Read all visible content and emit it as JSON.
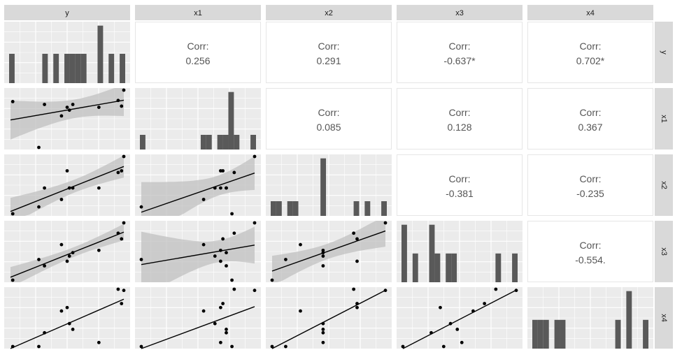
{
  "chart_data": {
    "type": "scatter",
    "variables": [
      "y",
      "x1",
      "x2",
      "x3",
      "x4"
    ],
    "corr_label": "Corr:",
    "correlations": [
      {
        "row": "x1",
        "col": "y",
        "value": "0.256"
      },
      {
        "row": "x2",
        "col": "y",
        "value": "0.291"
      },
      {
        "row": "x3",
        "col": "y",
        "value": "-0.637*"
      },
      {
        "row": "x4",
        "col": "y",
        "value": "0.702*"
      },
      {
        "row": "x2",
        "col": "x1",
        "value": "0.085"
      },
      {
        "row": "x3",
        "col": "x1",
        "value": "0.128"
      },
      {
        "row": "x4",
        "col": "x1",
        "value": "0.367"
      },
      {
        "row": "x3",
        "col": "x2",
        "value": "-0.381"
      },
      {
        "row": "x4",
        "col": "x2",
        "value": "-0.235"
      },
      {
        "row": "x4",
        "col": "x3",
        "value": "-0.554."
      }
    ],
    "observations": {
      "y": [
        0.02,
        0.25,
        0.3,
        0.45,
        0.5,
        0.52,
        0.55,
        0.78,
        0.95,
        1.0,
        0.98
      ],
      "x1": [
        0.8,
        0.0,
        0.75,
        0.55,
        0.7,
        0.65,
        0.75,
        0.7,
        0.82,
        1.0,
        0.72
      ],
      "x2": [
        0.0,
        0.12,
        0.45,
        0.25,
        0.75,
        0.45,
        0.45,
        0.45,
        0.72,
        1.0,
        0.75
      ],
      "x3": [
        0.0,
        0.36,
        0.25,
        0.62,
        0.33,
        0.42,
        0.48,
        0.52,
        0.82,
        1.0,
        0.72
      ],
      "x4": [
        0.0,
        0.0,
        0.24,
        0.62,
        0.68,
        0.4,
        0.3,
        0.07,
        1.0,
        0.98,
        0.75
      ]
    },
    "histograms": {
      "y": [
        0.5,
        0,
        0,
        0,
        0,
        0,
        0.5,
        0,
        0.5,
        0,
        0.5,
        0.5,
        0.5,
        0.5,
        0,
        0,
        0.98,
        0,
        0.5,
        0,
        0.5
      ],
      "x1": [
        0.25,
        0,
        0,
        0,
        0,
        0,
        0,
        0,
        0,
        0,
        0,
        0.25,
        0.25,
        0,
        0.25,
        0.25,
        0.98,
        0.25,
        0,
        0,
        0.25
      ],
      "x2": [
        0.25,
        0.25,
        0,
        0.25,
        0.25,
        0,
        0,
        0,
        0,
        0.98,
        0,
        0,
        0,
        0,
        0,
        0.25,
        0,
        0.25,
        0,
        0,
        0.25
      ],
      "x3": [
        0.98,
        0,
        0.49,
        0,
        0,
        0.98,
        0.49,
        0,
        0.49,
        0.49,
        0,
        0,
        0,
        0,
        0,
        0,
        0,
        0.49,
        0,
        0,
        0.49
      ],
      "x4": [
        0.49,
        0.49,
        0.49,
        0,
        0.49,
        0.49,
        0,
        0,
        0,
        0,
        0,
        0,
        0,
        0,
        0,
        0.49,
        0,
        0.98,
        0,
        0,
        0.49
      ]
    },
    "grid": true,
    "smooth": "lm with confidence band"
  }
}
